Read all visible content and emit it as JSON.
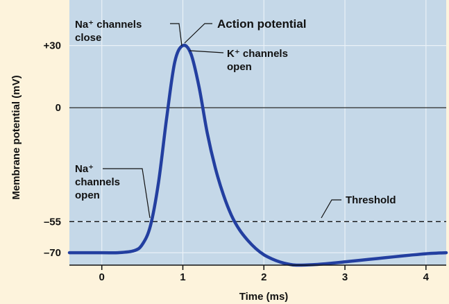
{
  "chart_data": {
    "type": "line",
    "title": "",
    "xlabel": "Time (ms)",
    "ylabel": "Membrane potential (mV)",
    "xlim": [
      -0.4,
      4.25
    ],
    "ylim": [
      -76,
      52
    ],
    "x_ticks": [
      "0",
      "1",
      "2",
      "3",
      "4"
    ],
    "y_ticks": [
      "+30",
      "0",
      "–55",
      "–70"
    ],
    "grid": true,
    "series": [
      {
        "x": [
          -0.4,
          0.0,
          0.2,
          0.4,
          0.5,
          0.6,
          0.7,
          0.8,
          0.9,
          1.0,
          1.1,
          1.2,
          1.3,
          1.4,
          1.5,
          1.6,
          1.7,
          1.8,
          1.9,
          2.0,
          2.1,
          2.2,
          2.3,
          2.4,
          2.6,
          2.8,
          3.0,
          3.2,
          3.4,
          3.6,
          3.8,
          4.0,
          4.25
        ],
        "y": [
          -70,
          -70,
          -70,
          -69,
          -66,
          -57,
          -36,
          -5,
          22,
          30,
          26,
          10,
          -12,
          -29,
          -42,
          -52,
          -59,
          -64,
          -68,
          -71,
          -73,
          -74.5,
          -75.5,
          -76,
          -75.8,
          -75.2,
          -74.4,
          -73.6,
          -72.8,
          -72,
          -71.2,
          -70.5,
          -70
        ]
      }
    ],
    "reference_lines": [
      {
        "y": 0,
        "style": "solid"
      },
      {
        "y": -55,
        "style": "dashed",
        "label": "Threshold"
      }
    ],
    "annotations": {
      "na_close_line1": "Na⁺ channels",
      "na_close_line2": "close",
      "action_potential": "Action potential",
      "k_open_line1": "K⁺ channels",
      "k_open_line2": "open",
      "na_open_line1": "Na⁺",
      "na_open_line2": "channels",
      "na_open_line3": "open"
    },
    "colors": {
      "panel": "#c5d8e8",
      "grid": "#eaf1f7",
      "curve": "#233fa0",
      "background": "#fdf3dc"
    }
  }
}
